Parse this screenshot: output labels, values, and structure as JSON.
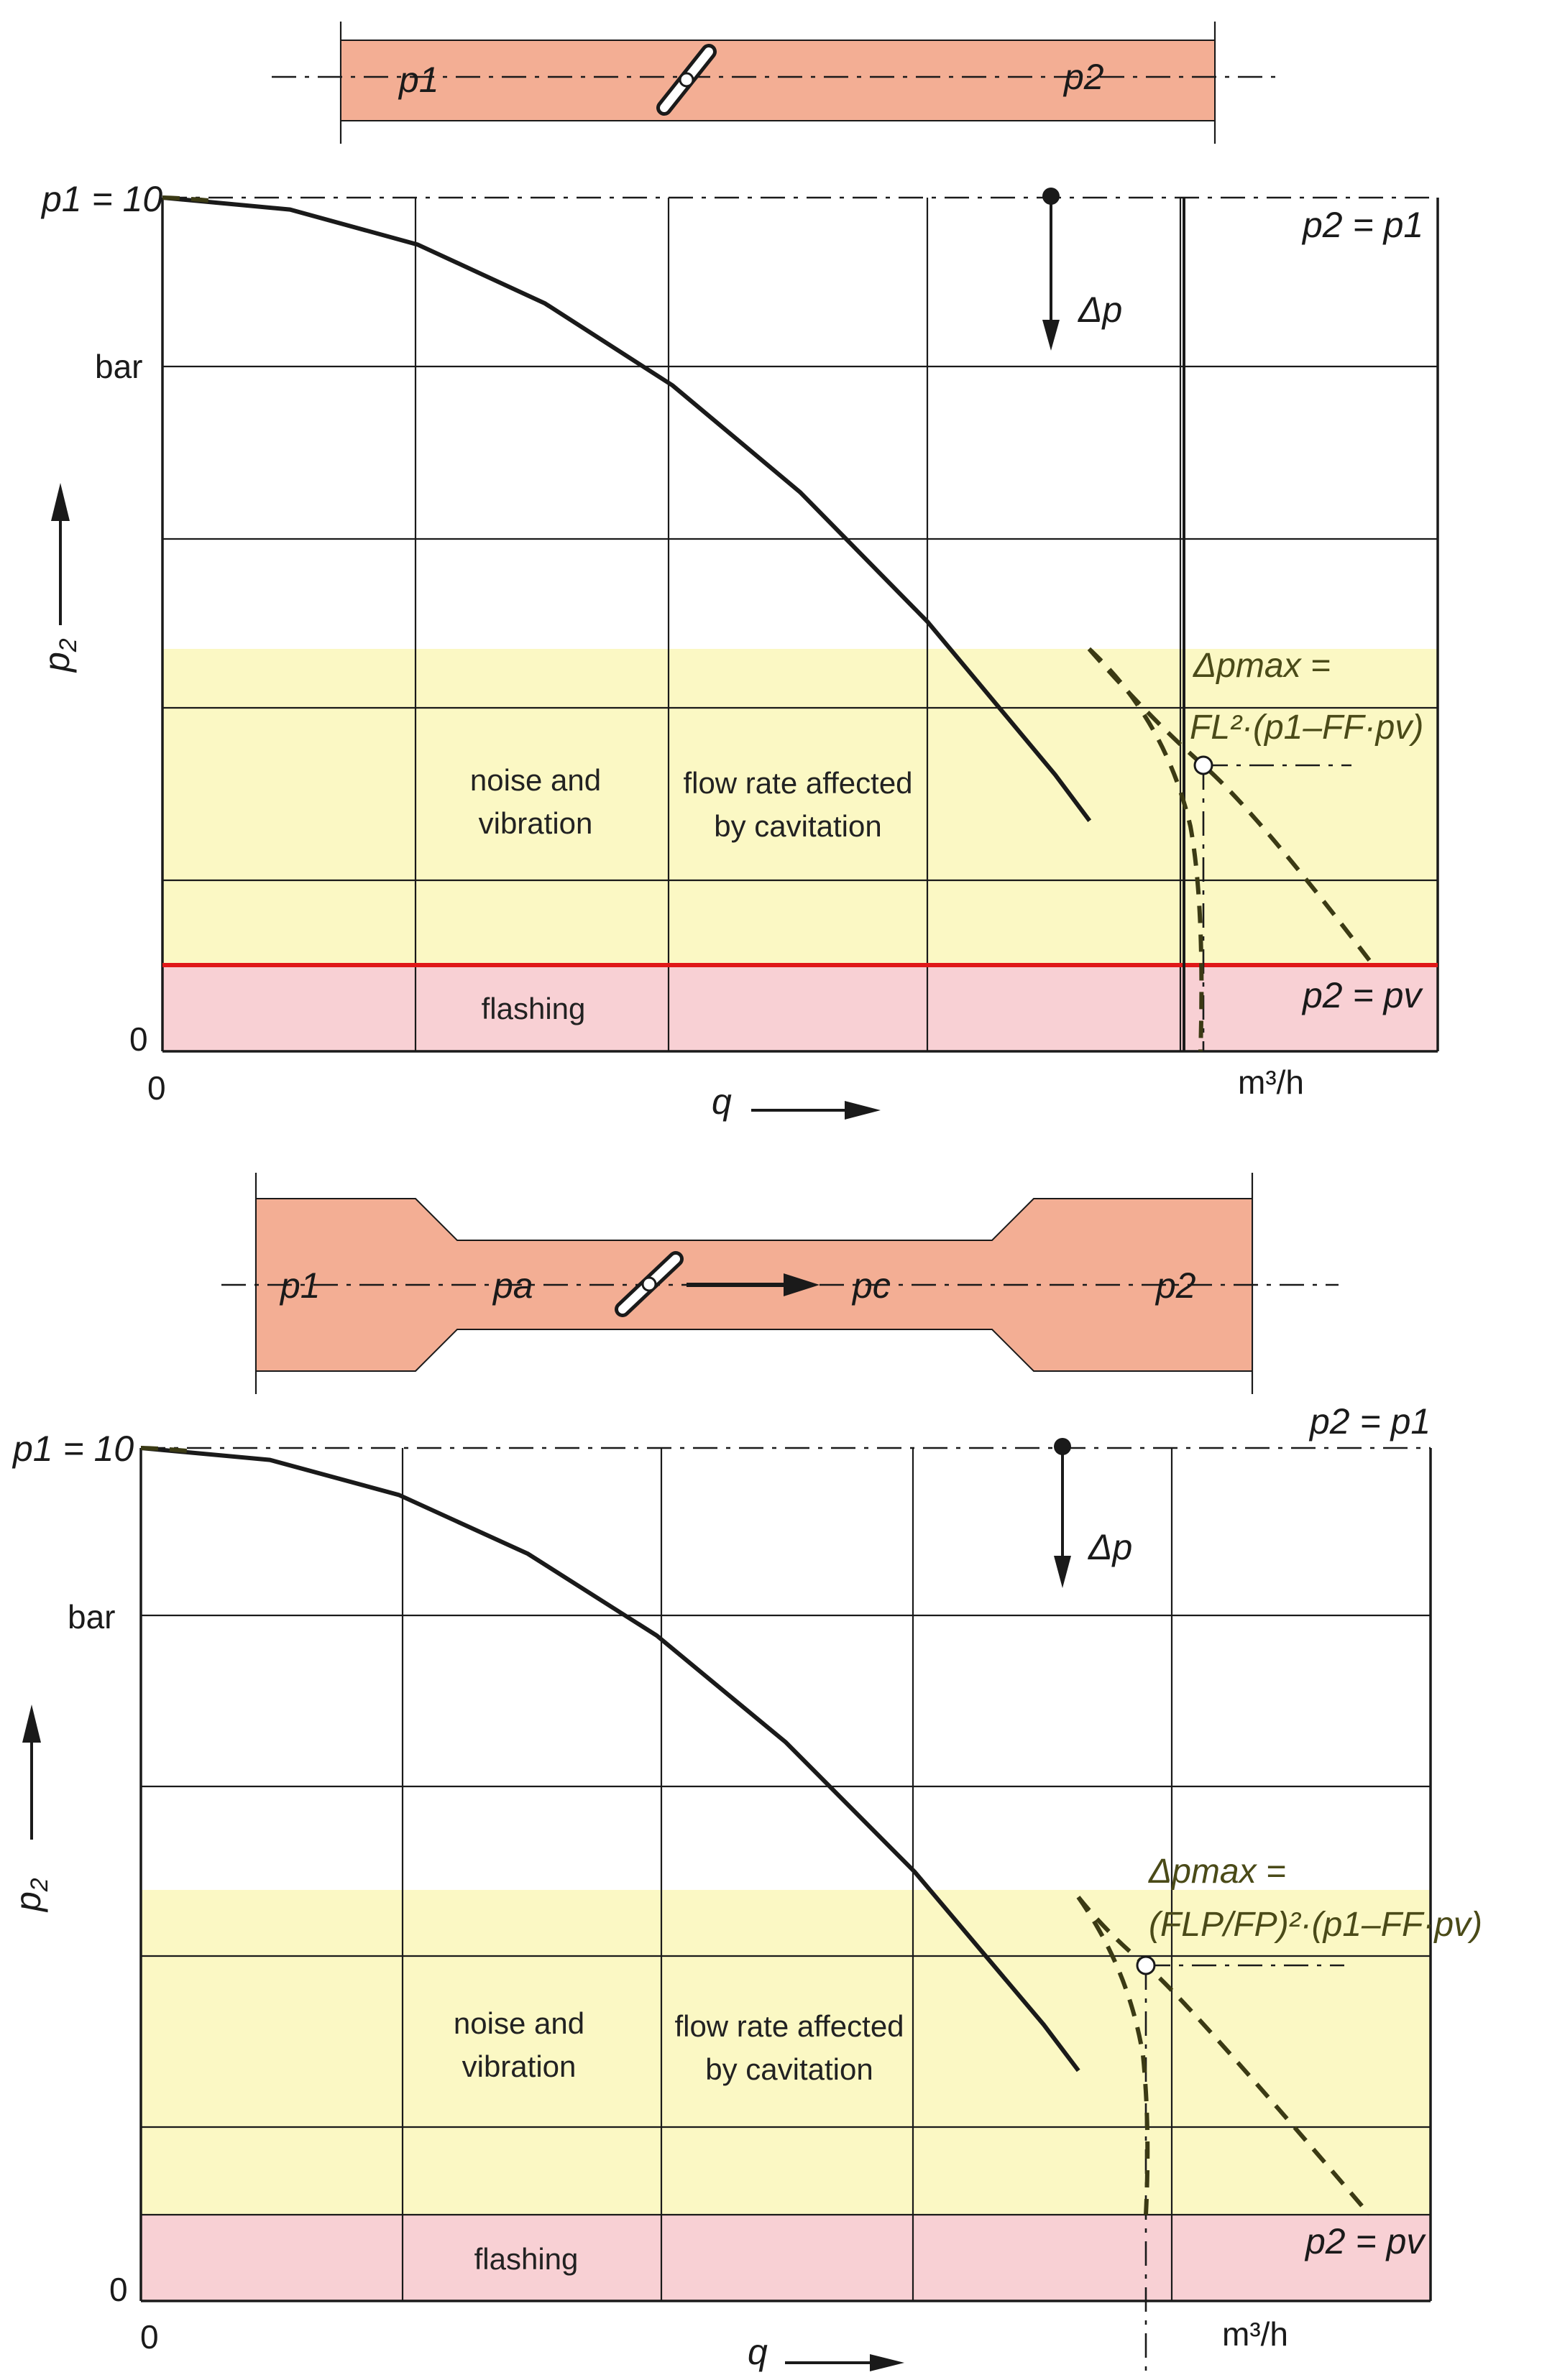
{
  "colors": {
    "pipe": "#f3ae94",
    "cavitation_zone": "#fbf8c4",
    "flashing_zone": "#f8d0d4",
    "flashing_boundary": "#e01818",
    "olive_text": "#4a4a18"
  },
  "chart_data": [
    {
      "type": "line",
      "x_label": "q",
      "x_unit": "m³/h",
      "x_tick_zero": "0",
      "y_label": "p",
      "y_label_sub": "2",
      "y_tick_zero": "0",
      "y_top_tick": "p1 = 10",
      "y_unit": "bar",
      "ylim": [
        0,
        10
      ],
      "x_relative": [
        0,
        1
      ],
      "series": [
        {
          "x": [
            0.0,
            0.1,
            0.2,
            0.3,
            0.4,
            0.5,
            0.6,
            0.7,
            0.727
          ],
          "y": [
            10.0,
            9.86,
            9.45,
            8.76,
            7.8,
            6.55,
            5.03,
            3.24,
            2.7
          ]
        }
      ],
      "zones": {
        "noise_text": [
          "noise and",
          "vibration"
        ],
        "cavitation_text": [
          "flow rate affected",
          "by cavitation"
        ],
        "flashing_text": "flashing"
      },
      "annotations": {
        "p2_eq_p1": "p2 = p1",
        "p2_eq_pv": "p2 = pv",
        "delta_p": "Δp",
        "dp_max_line1": "Δpmax =",
        "dp_max_line2": "FL²·(p1–FF·pv)"
      },
      "valve_diagram": {
        "p_left": "p1",
        "p_right": "p2"
      }
    },
    {
      "type": "line",
      "x_label": "q",
      "x_unit": "m³/h",
      "x_tick_zero": "0",
      "y_label": "p",
      "y_label_sub": "2",
      "y_tick_zero": "0",
      "y_top_tick": "p1 = 10",
      "y_unit": "bar",
      "ylim": [
        0,
        10
      ],
      "x_relative": [
        0,
        1
      ],
      "series": [
        {
          "x": [
            0.0,
            0.1,
            0.2,
            0.3,
            0.4,
            0.5,
            0.6,
            0.7,
            0.727
          ],
          "y": [
            10.0,
            9.86,
            9.45,
            8.76,
            7.8,
            6.55,
            5.03,
            3.24,
            2.7
          ]
        }
      ],
      "zones": {
        "noise_text": [
          "noise and",
          "vibration"
        ],
        "cavitation_text": [
          "flow rate affected",
          "by cavitation"
        ],
        "flashing_text": "flashing"
      },
      "annotations": {
        "p2_eq_p1": "p2 = p1",
        "p2_eq_pv": "p2 = pv",
        "delta_p": "Δp",
        "dp_max_line1": "Δpmax =",
        "dp_max_line2": "(FLP/FP)²·(p1–FF·pv)"
      },
      "valve_diagram": {
        "p_left": "p1",
        "p_a": "pa",
        "p_c": "pc",
        "p_right": "p2"
      }
    }
  ]
}
